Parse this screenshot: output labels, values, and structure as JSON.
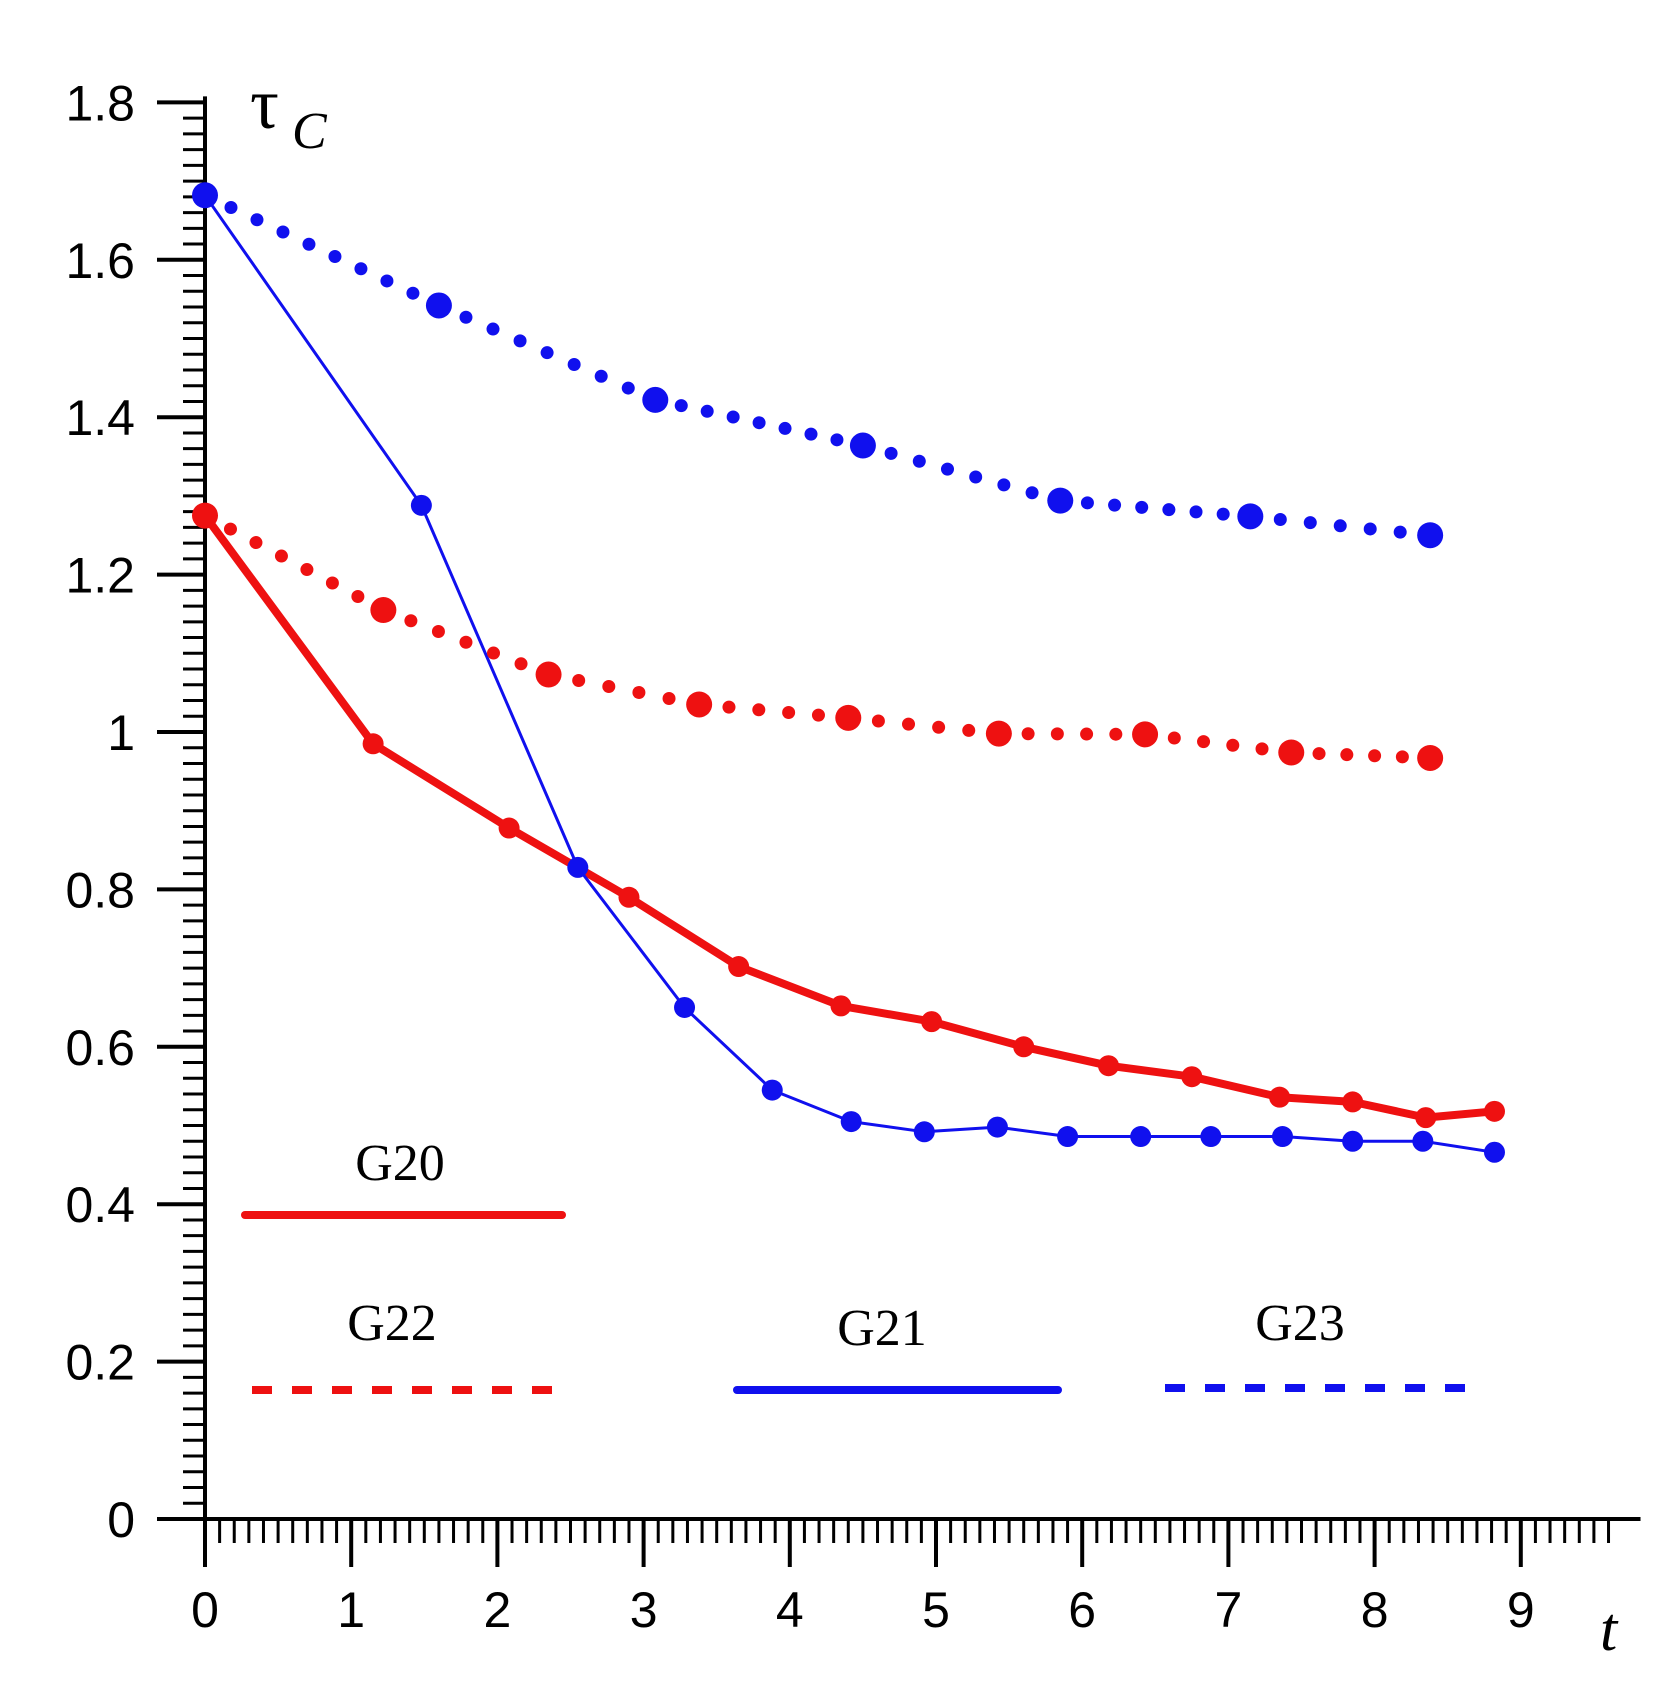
{
  "chart_data": {
    "type": "line",
    "title": "",
    "xlabel": "t",
    "ylabel": {
      "main": "τ",
      "sub": "C"
    },
    "xlim": [
      0,
      9.6
    ],
    "ylim": [
      0,
      1.8
    ],
    "x_ticks": [
      "0",
      "1",
      "2",
      "3",
      "4",
      "5",
      "6",
      "7",
      "8",
      "9"
    ],
    "y_ticks": [
      "0",
      "0.2",
      "0.4",
      "0.6",
      "0.8",
      "1",
      "1.2",
      "1.4",
      "1.6",
      "1.8"
    ],
    "grid": false,
    "series": [
      {
        "name": "G20",
        "color": "#ee1111",
        "style": "thick-solid",
        "points": [
          [
            0,
            1.275
          ],
          [
            1.15,
            0.985
          ],
          [
            2.08,
            0.878
          ],
          [
            2.9,
            0.79
          ],
          [
            3.65,
            0.702
          ],
          [
            4.35,
            0.652
          ],
          [
            4.97,
            0.632
          ],
          [
            5.6,
            0.6
          ],
          [
            6.18,
            0.576
          ],
          [
            6.75,
            0.562
          ],
          [
            7.35,
            0.536
          ],
          [
            7.85,
            0.53
          ],
          [
            8.35,
            0.51
          ],
          [
            8.82,
            0.518
          ]
        ]
      },
      {
        "name": "G21",
        "color": "#1010ee",
        "style": "thin-solid",
        "points": [
          [
            0,
            1.682
          ],
          [
            1.48,
            1.288
          ],
          [
            2.55,
            0.828
          ],
          [
            3.28,
            0.65
          ],
          [
            3.88,
            0.545
          ],
          [
            4.42,
            0.505
          ],
          [
            4.92,
            0.492
          ],
          [
            5.42,
            0.498
          ],
          [
            5.9,
            0.486
          ],
          [
            6.4,
            0.486
          ],
          [
            6.88,
            0.486
          ],
          [
            7.37,
            0.486
          ],
          [
            7.85,
            0.48
          ],
          [
            8.33,
            0.48
          ],
          [
            8.82,
            0.466
          ]
        ]
      },
      {
        "name": "G22",
        "color": "#ee1111",
        "style": "dotted",
        "points": [
          [
            0,
            1.275
          ],
          [
            1.22,
            1.155
          ],
          [
            2.35,
            1.073
          ],
          [
            3.38,
            1.035
          ],
          [
            4.4,
            1.018
          ],
          [
            5.43,
            0.998
          ],
          [
            6.43,
            0.997
          ],
          [
            7.43,
            0.974
          ],
          [
            8.38,
            0.967
          ]
        ]
      },
      {
        "name": "G23",
        "color": "#1010ee",
        "style": "dotted",
        "points": [
          [
            0,
            1.682
          ],
          [
            1.6,
            1.542
          ],
          [
            3.08,
            1.422
          ],
          [
            4.5,
            1.364
          ],
          [
            5.85,
            1.294
          ],
          [
            7.15,
            1.274
          ],
          [
            8.38,
            1.25
          ]
        ]
      }
    ],
    "legend": [
      {
        "name": "G20",
        "color": "#ee1111",
        "style": "solid"
      },
      {
        "name": "G22",
        "color": "#ee1111",
        "style": "dashed"
      },
      {
        "name": "G21",
        "color": "#1010ee",
        "style": "solid"
      },
      {
        "name": "G23",
        "color": "#1010ee",
        "style": "dashed"
      }
    ]
  }
}
